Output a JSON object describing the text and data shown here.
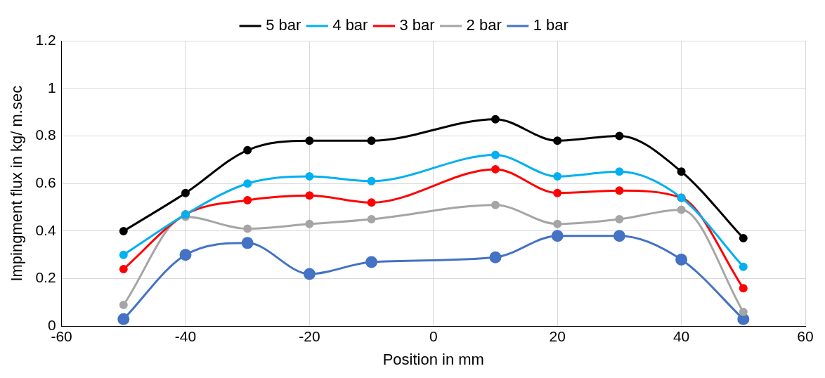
{
  "chart_data": {
    "type": "line",
    "xlabel": "Position in mm",
    "ylabel": "Impingment flux in kg/ m.sec",
    "x": [
      -50,
      -40,
      -30,
      -20,
      -10,
      10,
      20,
      30,
      40,
      50
    ],
    "series": [
      {
        "name": "5 bar",
        "color": "#000000",
        "values": [
          0.4,
          0.56,
          0.74,
          0.78,
          0.78,
          0.87,
          0.78,
          0.8,
          0.65,
          0.37
        ]
      },
      {
        "name": "4 bar",
        "color": "#00b0f0",
        "values": [
          0.3,
          0.47,
          0.6,
          0.63,
          0.61,
          0.72,
          0.63,
          0.65,
          0.54,
          0.25
        ]
      },
      {
        "name": "3 bar",
        "color": "#ff0000",
        "values": [
          0.24,
          0.47,
          0.53,
          0.55,
          0.52,
          0.66,
          0.56,
          0.57,
          0.54,
          0.16
        ]
      },
      {
        "name": "2 bar",
        "color": "#a5a5a5",
        "values": [
          0.09,
          0.46,
          0.41,
          0.43,
          0.45,
          0.51,
          0.43,
          0.45,
          0.49,
          0.06
        ]
      },
      {
        "name": "1 bar",
        "color": "#4472c4",
        "values": [
          0.03,
          0.3,
          0.35,
          0.22,
          0.27,
          0.29,
          0.38,
          0.38,
          0.28,
          0.03
        ]
      }
    ],
    "xlim": [
      -60,
      60
    ],
    "xticks": [
      -60,
      -40,
      -20,
      0,
      20,
      40,
      60
    ],
    "ylim": [
      0,
      1.2
    ],
    "yticks": [
      0,
      0.2,
      0.4,
      0.6,
      0.8,
      1,
      1.2
    ],
    "grid": true,
    "legend": "top",
    "marker": "circle",
    "line_style": "solid"
  }
}
